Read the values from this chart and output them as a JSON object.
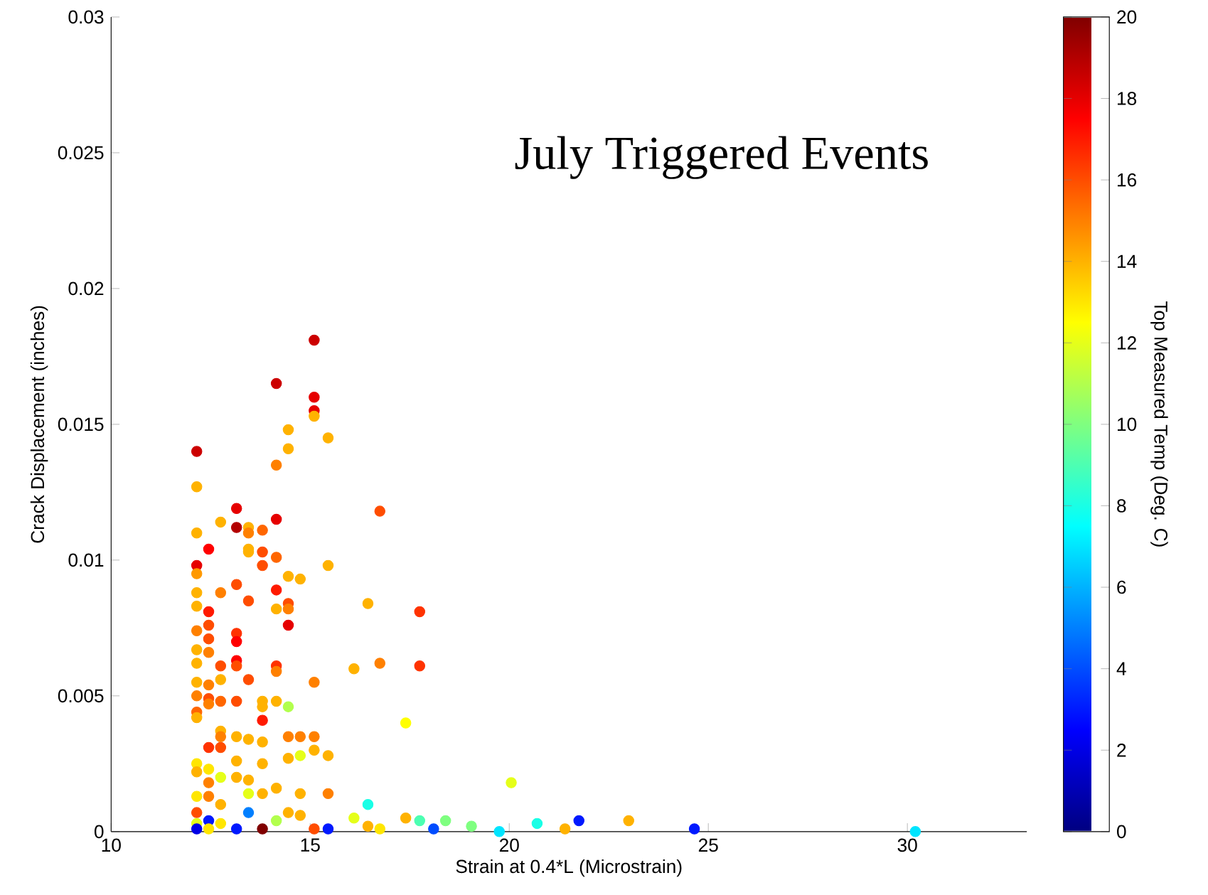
{
  "chart_data": {
    "type": "scatter",
    "title": "July Triggered Events",
    "xlabel": "Strain at 0.4*L (Microstrain)",
    "ylabel": "Crack Displacement (inches)",
    "clabel": "Top Measured Temp (Deg. C)",
    "xlim": [
      10,
      33
    ],
    "ylim": [
      0,
      0.03
    ],
    "xticks": [
      10,
      15,
      20,
      25,
      30
    ],
    "yticks": [
      0,
      0.005,
      0.01,
      0.015,
      0.02,
      0.025,
      0.03
    ],
    "clim": [
      0,
      20
    ],
    "cticks": [
      0,
      2,
      4,
      6,
      8,
      10,
      12,
      14,
      16,
      18,
      20
    ],
    "marker": "circle",
    "grid": false,
    "x": [
      12.15,
      12.15,
      12.15,
      12.15,
      12.15,
      12.15,
      12.15,
      12.15,
      12.15,
      12.15,
      12.15,
      12.15,
      12.15,
      12.15,
      12.15,
      12.15,
      12.15,
      12.15,
      12.15,
      12.15,
      12.45,
      12.45,
      12.45,
      12.45,
      12.45,
      12.45,
      12.45,
      12.45,
      12.45,
      12.45,
      12.45,
      12.45,
      12.45,
      12.45,
      12.75,
      12.75,
      12.75,
      12.75,
      12.75,
      12.75,
      12.75,
      12.75,
      12.75,
      12.75,
      12.75,
      13.15,
      13.15,
      13.15,
      13.15,
      13.15,
      13.15,
      13.15,
      13.15,
      13.15,
      13.15,
      13.15,
      13.15,
      13.45,
      13.45,
      13.45,
      13.45,
      13.45,
      13.45,
      13.45,
      13.45,
      13.45,
      13.45,
      13.8,
      13.8,
      13.8,
      13.8,
      13.8,
      13.8,
      13.8,
      13.8,
      13.8,
      13.8,
      14.15,
      14.15,
      14.15,
      14.15,
      14.15,
      14.15,
      14.15,
      14.15,
      14.15,
      14.15,
      14.15,
      14.45,
      14.45,
      14.45,
      14.45,
      14.45,
      14.45,
      14.45,
      14.45,
      14.45,
      14.45,
      14.75,
      14.75,
      14.75,
      14.75,
      14.75,
      15.1,
      15.1,
      15.1,
      15.1,
      15.1,
      15.1,
      15.1,
      15.1,
      15.45,
      15.45,
      15.45,
      15.45,
      15.45,
      16.1,
      16.1,
      16.45,
      16.45,
      16.45,
      16.75,
      16.75,
      16.75,
      17.4,
      17.4,
      17.75,
      17.75,
      17.75,
      18.4,
      18.1,
      19.05,
      19.75,
      20.05,
      20.7,
      21.4,
      21.75,
      23.0,
      24.65,
      30.2
    ],
    "values": [
      0.014,
      0.0127,
      0.011,
      0.0098,
      0.0095,
      0.0088,
      0.0083,
      0.0074,
      0.0067,
      0.0062,
      0.0055,
      0.005,
      0.0044,
      0.0042,
      0.0025,
      0.0022,
      0.0013,
      0.0007,
      0.0003,
      0.0001,
      0.0104,
      0.0081,
      0.0076,
      0.0071,
      0.0066,
      0.0054,
      0.0049,
      0.0047,
      0.0031,
      0.0023,
      0.0018,
      0.0013,
      0.0004,
      0.0001,
      0.0114,
      0.0088,
      0.0061,
      0.0056,
      0.0048,
      0.0037,
      0.0035,
      0.0031,
      0.002,
      0.001,
      0.0003,
      0.0119,
      0.0112,
      0.0091,
      0.0073,
      0.007,
      0.0063,
      0.0061,
      0.0048,
      0.0035,
      0.0026,
      0.002,
      0.0001,
      0.0112,
      0.011,
      0.0104,
      0.0103,
      0.0085,
      0.0056,
      0.0034,
      0.0019,
      0.0014,
      0.0007,
      0.0111,
      0.0103,
      0.0098,
      0.0048,
      0.0046,
      0.0041,
      0.0033,
      0.0025,
      0.0014,
      0.0001,
      0.0165,
      0.0135,
      0.0115,
      0.0101,
      0.0089,
      0.0082,
      0.0061,
      0.0059,
      0.0048,
      0.0016,
      0.0004,
      0.0148,
      0.0141,
      0.0094,
      0.0084,
      0.0082,
      0.0076,
      0.0046,
      0.0035,
      0.0027,
      0.0007,
      0.0093,
      0.0035,
      0.0028,
      0.0014,
      0.0006,
      0.0181,
      0.016,
      0.0155,
      0.0153,
      0.0055,
      0.0035,
      0.003,
      0.0001,
      0.0145,
      0.0098,
      0.0028,
      0.0014,
      0.0001,
      0.006,
      0.0005,
      0.0084,
      0.001,
      0.0002,
      0.0118,
      0.0062,
      0.0001,
      0.004,
      0.0005,
      0.0081,
      0.0061,
      0.0004,
      0.0004,
      0.0001,
      0.0002,
      0.0,
      0.0018,
      0.0003,
      0.0001,
      0.0004,
      0.0004,
      0.0001,
      0.0
    ],
    "cvalues": [
      18.5,
      14,
      14,
      18,
      14.5,
      14,
      14,
      15,
      14,
      14,
      14,
      15,
      15.5,
      14,
      13,
      14,
      13,
      16,
      12,
      2,
      17.5,
      17,
      16,
      16,
      15,
      15,
      16,
      15,
      16.5,
      13,
      15,
      15,
      3,
      13,
      14,
      15,
      16,
      14,
      15.5,
      14,
      15,
      16,
      12,
      14,
      13,
      18,
      19,
      16,
      16.5,
      17.5,
      17.5,
      16,
      16,
      14,
      14,
      14,
      3,
      14,
      15,
      14,
      14,
      16,
      16,
      14,
      14,
      12,
      5,
      15.5,
      16,
      16,
      14,
      14,
      17,
      14,
      14,
      14,
      20,
      18.5,
      15,
      18,
      15.5,
      17,
      14,
      16.5,
      15,
      14,
      14,
      11,
      14,
      14,
      14,
      16,
      15,
      18,
      11,
      15,
      14,
      14,
      14,
      15,
      12,
      14,
      14,
      18.5,
      18,
      18,
      14,
      15,
      15,
      14,
      16,
      14,
      14,
      14,
      15,
      3,
      14,
      12,
      14,
      8,
      14,
      16,
      15,
      13,
      12.5,
      14,
      16.5,
      16.5,
      9,
      10,
      4,
      10,
      7,
      12,
      8,
      14,
      3,
      14,
      3,
      7
    ]
  }
}
